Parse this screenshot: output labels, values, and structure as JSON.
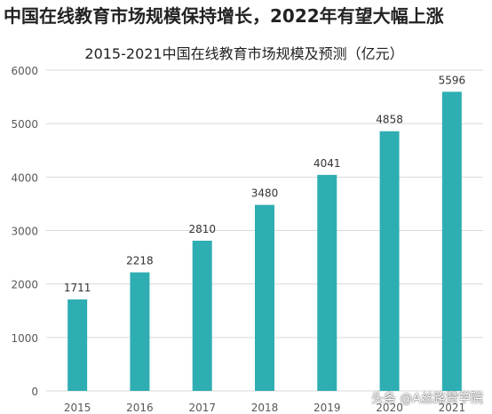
{
  "headline": "中国在线教育市场规模保持增长，2022年有望大幅上涨",
  "watermark": "头条 @A丝路赞学院",
  "colors": {
    "bar": "#2eaeb2",
    "grid": "#d9d9d9",
    "text": "#595959"
  },
  "chart_data": {
    "type": "bar",
    "title": "2015-2021中国在线教育市场规模及预测（亿元）",
    "categories": [
      "2015",
      "2016",
      "2017",
      "2018",
      "2019",
      "2020",
      "2021"
    ],
    "values": [
      1711,
      2218,
      2810,
      3480,
      4041,
      4858,
      5596
    ],
    "data_labels": [
      "1711",
      "2218",
      "2810",
      "3480",
      "4041",
      "4858",
      "5596"
    ],
    "ylim": [
      0,
      6000
    ],
    "yticks": [
      0,
      1000,
      2000,
      3000,
      4000,
      5000,
      6000
    ],
    "ytick_labels": [
      "0",
      "1000",
      "2000",
      "3000",
      "4000",
      "5000",
      "6000"
    ],
    "xlabel": "",
    "ylabel": "",
    "grid": true,
    "legend": "none"
  }
}
